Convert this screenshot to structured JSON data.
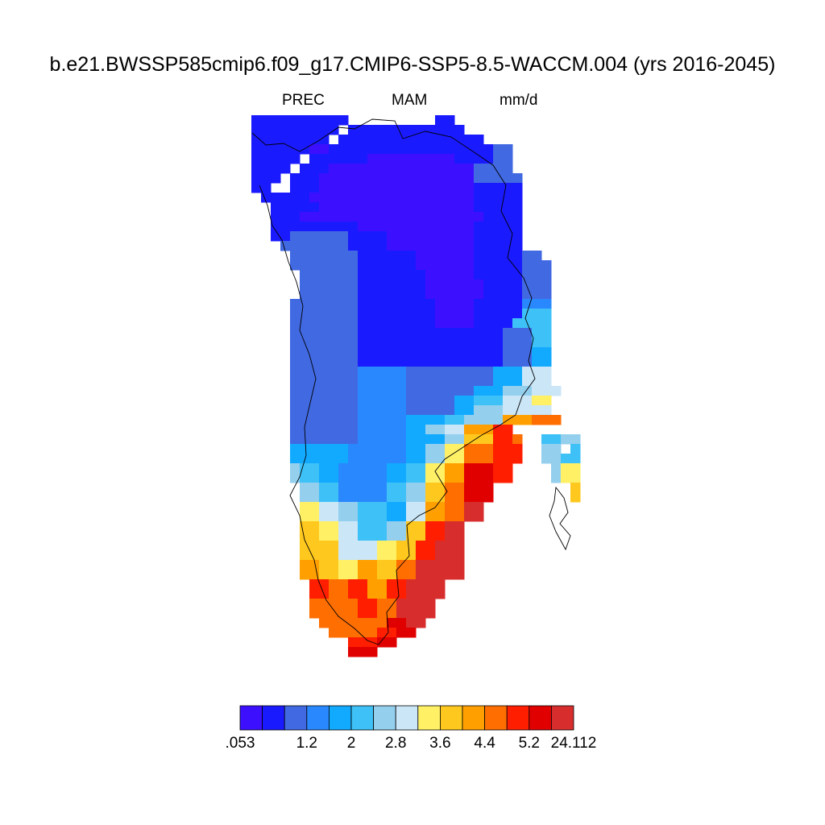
{
  "title": "b.e21.BWSSP585cmip6.f09_g17.CMIP6-SSP5-8.5-WACCM.004 (yrs 2016-2045)",
  "subtitle": {
    "variable": "PREC",
    "season": "MAM",
    "units": "mm/d"
  },
  "colorbar": {
    "colors": [
      "#3c10ff",
      "#1a1aff",
      "#4169e1",
      "#2a88ff",
      "#12aaff",
      "#3ec1f7",
      "#94cfee",
      "#cbe6f7",
      "#fff066",
      "#ffc81e",
      "#ffa000",
      "#ff6e00",
      "#ff1e00",
      "#e10000",
      "#d72d2d"
    ],
    "labels": [
      {
        "text": ".053",
        "boundary": 0
      },
      {
        "text": "1.2",
        "boundary": 3
      },
      {
        "text": "2",
        "boundary": 5
      },
      {
        "text": "2.8",
        "boundary": 7
      },
      {
        "text": "3.6",
        "boundary": 9
      },
      {
        "text": "4.4",
        "boundary": 11
      },
      {
        "text": "5.2",
        "boundary": 13
      },
      {
        "text": "24.112",
        "boundary": 15
      }
    ]
  }
}
